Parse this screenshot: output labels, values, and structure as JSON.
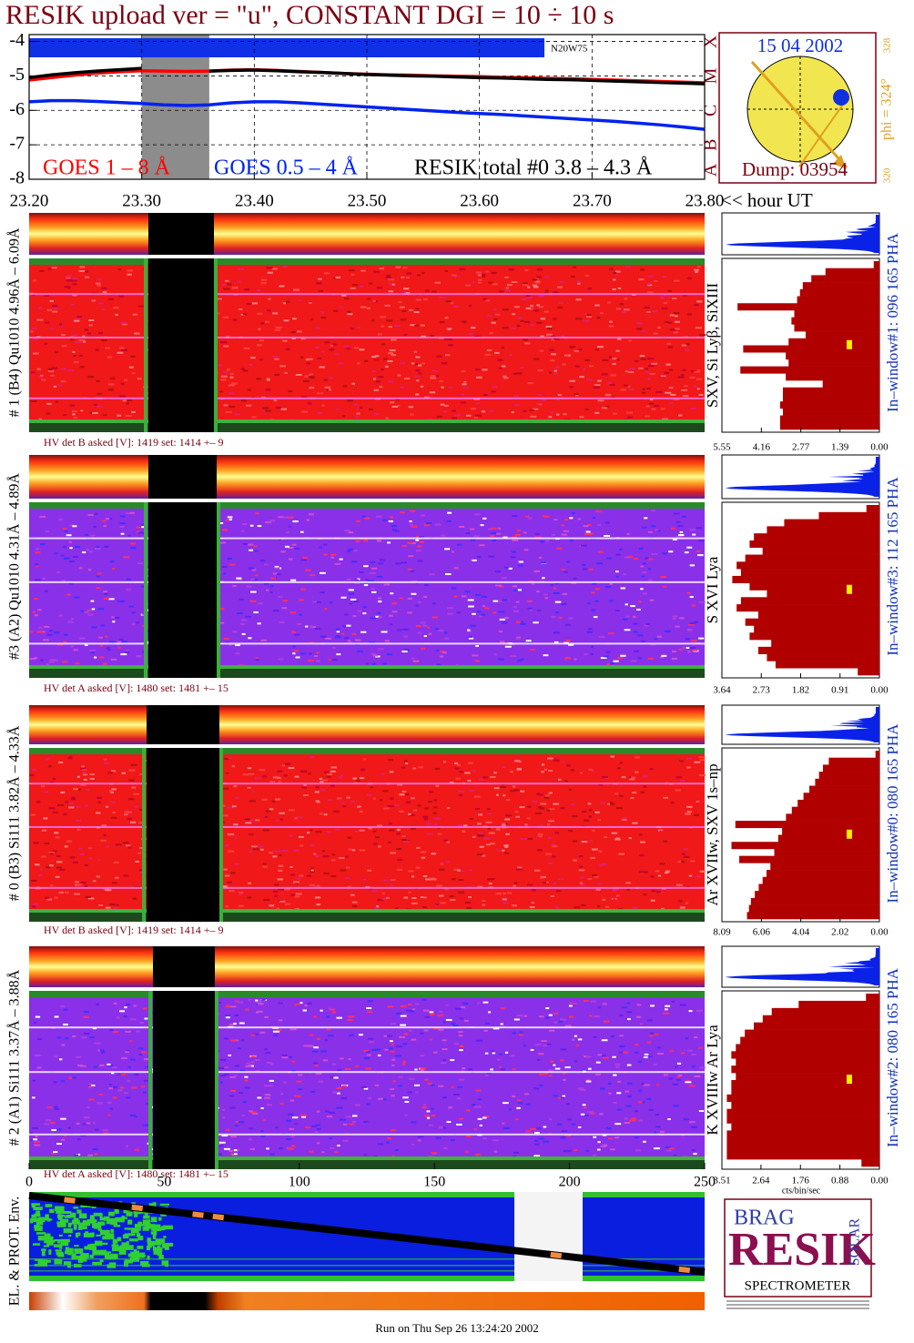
{
  "title": "RESIK upload ver = \"u\", CONSTANT  DGI =  10 ÷  10 s",
  "chart_data": [
    {
      "type": "line",
      "x": [
        23.2,
        23.22,
        23.24,
        23.26,
        23.28,
        23.3,
        23.32,
        23.34,
        23.36,
        23.38,
        23.4,
        23.42,
        23.44,
        23.46,
        23.48,
        23.5,
        23.52,
        23.54,
        23.56,
        23.58,
        23.6,
        23.62,
        23.64,
        23.66,
        23.68,
        23.7,
        23.72,
        23.74,
        23.76,
        23.78,
        23.8
      ],
      "series": [
        {
          "name": "GOES 1 – 8 Å",
          "color": "#ff0000",
          "values": [
            -5.12,
            -5.05,
            -4.98,
            -4.92,
            -4.88,
            -4.85,
            -4.86,
            -4.87,
            -4.86,
            -4.83,
            -4.82,
            -4.84,
            -4.87,
            -4.9,
            -4.93,
            -4.95,
            -4.97,
            -4.98,
            -5.0,
            -5.01,
            -5.02,
            -5.04,
            -5.05,
            -5.07,
            -5.08,
            -5.1,
            -5.12,
            -5.14,
            -5.16,
            -5.18,
            -5.2
          ]
        },
        {
          "name": "GOES 0.5 – 4 Å",
          "color": "#0022ee",
          "values": [
            -5.75,
            -5.72,
            -5.72,
            -5.74,
            -5.77,
            -5.8,
            -5.84,
            -5.86,
            -5.84,
            -5.78,
            -5.75,
            -5.75,
            -5.78,
            -5.82,
            -5.86,
            -5.9,
            -5.94,
            -5.98,
            -6.02,
            -6.06,
            -6.09,
            -6.12,
            -6.16,
            -6.2,
            -6.24,
            -6.28,
            -6.32,
            -6.37,
            -6.42,
            -6.48,
            -6.55
          ]
        },
        {
          "name": "RESIK total #0  3.8 – 4.3 Å",
          "color": "#000000",
          "values": [
            -5.05,
            -4.97,
            -4.91,
            -4.86,
            -4.82,
            -4.78,
            null,
            null,
            -4.86,
            -4.84,
            -4.83,
            -4.85,
            -4.88,
            -4.9,
            -4.93,
            -4.96,
            -4.98,
            -5.0,
            -5.01,
            -5.03,
            -5.05,
            -5.06,
            -5.08,
            -5.1,
            -5.11,
            -5.13,
            -5.15,
            -5.17,
            -5.19,
            -5.21,
            -5.23
          ]
        }
      ],
      "xlim": [
        23.2,
        23.8
      ],
      "xticks": [
        {
          "value": 23.2,
          "label": "23.20"
        },
        {
          "value": 23.3,
          "label": "23.30"
        },
        {
          "value": 23.4,
          "label": "23.40"
        },
        {
          "value": 23.5,
          "label": "23.50"
        },
        {
          "value": 23.6,
          "label": "23.60"
        },
        {
          "value": 23.7,
          "label": "23.70"
        },
        {
          "value": 23.8,
          "label": "23.80"
        }
      ],
      "x_label": "<< hour UT",
      "ylim": [
        -8,
        -3.8
      ],
      "yticks": [
        -4,
        -5,
        -6,
        -7,
        -8
      ],
      "y2lim": [
        -8,
        -3.8
      ],
      "y2ticks": [
        {
          "value": -4,
          "label": "X"
        },
        {
          "value": -5,
          "label": "M"
        },
        {
          "value": -6,
          "label": "C"
        },
        {
          "value": -7,
          "label": "B"
        },
        {
          "value": -8,
          "label": "A"
        }
      ],
      "grid": true,
      "annotation": "N20W75",
      "shaded_range": [
        23.3,
        23.36
      ]
    },
    {
      "type": "pha",
      "detector_label": "# 1 (B4) Qu1010 4.96Å – 6.09Å",
      "hv_text": "HV det B asked [V]:  1419 set:  1414  +–    9",
      "line_label": "SXV, Si Lyβ, SiXIII",
      "window_label": "In–window#1:  096 165 PHA",
      "color": "#b00000",
      "xlim": [
        5.55,
        0
      ],
      "xticks": [
        5.55,
        4.16,
        2.77,
        1.39,
        {
          "value": 0,
          "label": "0.00"
        }
      ],
      "values": [
        0.2,
        1.9,
        2.4,
        2.7,
        2.8,
        2.9,
        5.0,
        3.0,
        3.1,
        3.0,
        2.6,
        3.2,
        4.8,
        3.3,
        3.2,
        4.9,
        3.3,
        2.0,
        3.4,
        3.4,
        3.5,
        3.4,
        3.5,
        3.5
      ]
    },
    {
      "type": "pha",
      "detector_label": "#3 (A2) Qu1010  4.31Å – 4.89Å",
      "hv_text": "HV det A asked [V]:  1480 set:  1481  +–    15",
      "line_label": "S XVI Lya",
      "window_label": "In–window#3:  112 165 PHA",
      "color": "#b00000",
      "xlim": [
        3.64,
        0
      ],
      "xticks": [
        3.64,
        2.73,
        1.82,
        0.91,
        {
          "value": 0,
          "label": "0.00"
        }
      ],
      "values": [
        0.3,
        1.4,
        2.2,
        2.6,
        2.9,
        3.0,
        2.7,
        3.1,
        3.3,
        3.2,
        3.4,
        3.0,
        2.6,
        3.2,
        3.3,
        2.8,
        3.1,
        2.9,
        3.0,
        2.5,
        2.8,
        2.6,
        2.4,
        0.5
      ]
    },
    {
      "type": "pha",
      "detector_label": "# 0 (B3) Si111  3.82Å – 4.33Å",
      "hv_text": "HV det B asked [V]:  1419 set:  1414  +–    9",
      "line_label": "Ar XVIIw, SXV 1s–np",
      "window_label": "In–window#0:  080 165 PHA",
      "color": "#b00000",
      "xlim": [
        8.09,
        0
      ],
      "xticks": [
        8.09,
        6.06,
        4.04,
        2.02,
        {
          "value": 0,
          "label": "0.00"
        }
      ],
      "values": [
        0.2,
        2.6,
        2.9,
        3.1,
        3.3,
        3.6,
        3.9,
        4.2,
        4.5,
        4.8,
        7.4,
        5.0,
        5.2,
        7.6,
        5.4,
        7.2,
        5.6,
        5.8,
        6.0,
        6.2,
        6.4,
        6.6,
        6.7,
        6.8
      ]
    },
    {
      "type": "pha",
      "detector_label": "# 2 (A1) Si111  3.37Å – 3.88Å",
      "hv_text": "HV det A asked [V]:  1480 set:  1481  +–    15",
      "line_label": "K XVIIIw  Ar Lya",
      "window_label": "In–window#2:  080 165 PHA",
      "color": "#b00000",
      "xlim": [
        3.51,
        0
      ],
      "xticks": [
        3.51,
        2.64,
        1.76,
        0.88,
        {
          "value": 0,
          "label": "0.00"
        }
      ],
      "x_label": "cts/bin/sec",
      "values": [
        0.3,
        1.8,
        2.4,
        2.6,
        2.8,
        3.0,
        3.1,
        3.2,
        3.3,
        3.2,
        3.3,
        3.2,
        3.3,
        3.3,
        3.4,
        3.3,
        3.4,
        3.4,
        3.3,
        3.4,
        3.4,
        3.4,
        3.4,
        0.4
      ]
    },
    {
      "type": "strip",
      "y_label": "EL. & PROT. Env.",
      "xlim": [
        0,
        250
      ],
      "xticks": [
        0,
        50,
        100,
        150,
        200,
        250
      ]
    }
  ],
  "sun": {
    "date": "15 04 2002",
    "dump": "Dump: 03954",
    "phi": "phi = 324°",
    "scale_top": "328",
    "scale_bottom": "320"
  },
  "logo": {
    "top": "BRAG",
    "main": "RESIK",
    "side": "SOLAR",
    "bottom": "SPECTROMETER"
  },
  "footer": "Run on Thu Sep 26 13:24:20 2002"
}
